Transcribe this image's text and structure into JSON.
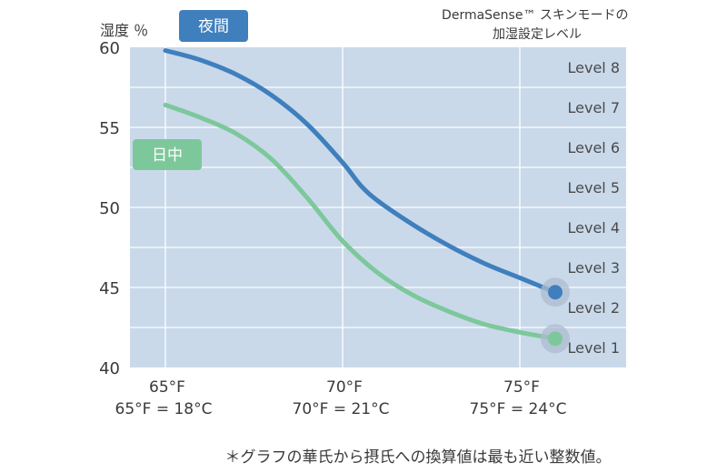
{
  "chart_data": {
    "type": "line",
    "title": "DermaSense™ スキンモードの\n加湿設定レベル",
    "ylabel": "湿度 ％",
    "ylim": [
      40,
      60
    ],
    "yticks": [
      40,
      45,
      50,
      55,
      60
    ],
    "xlim": [
      64,
      78
    ],
    "xticks": [
      {
        "value": 65,
        "label": "65°F",
        "sub": "65°F = 18°C"
      },
      {
        "value": 70,
        "label": "70°F",
        "sub": "70°F = 21°C"
      },
      {
        "value": 75,
        "label": "75°F",
        "sub": "75°F = 24°C"
      }
    ],
    "levels": [
      {
        "label": "Level 1",
        "from": 40,
        "to": 42.5
      },
      {
        "label": "Level 2",
        "from": 42.5,
        "to": 45
      },
      {
        "label": "Level 3",
        "from": 45,
        "to": 47.5
      },
      {
        "label": "Level 4",
        "from": 47.5,
        "to": 50
      },
      {
        "label": "Level 5",
        "from": 50,
        "to": 52.5
      },
      {
        "label": "Level 6",
        "from": 52.5,
        "to": 55
      },
      {
        "label": "Level 7",
        "from": 55,
        "to": 57.5
      },
      {
        "label": "Level 8",
        "from": 57.5,
        "to": 60
      }
    ],
    "series": [
      {
        "name": "夜間",
        "color": "#3f7fbd",
        "x": [
          65,
          66,
          67,
          68,
          69,
          70,
          70.5,
          71,
          72,
          73,
          74,
          75,
          76
        ],
        "values": [
          59.8,
          59.2,
          58.3,
          57.0,
          55.2,
          52.8,
          51.4,
          50.4,
          48.9,
          47.6,
          46.5,
          45.6,
          44.7
        ]
      },
      {
        "name": "日中",
        "color": "#7dc89b",
        "x": [
          65,
          66,
          67,
          68,
          69,
          70,
          71,
          72,
          73,
          74,
          75,
          76
        ],
        "values": [
          56.4,
          55.6,
          54.6,
          53.0,
          50.6,
          47.9,
          45.9,
          44.5,
          43.5,
          42.7,
          42.2,
          41.8
        ]
      }
    ],
    "footnote": "＊グラフの華氏から摂氏への換算値は最も近い整数値。"
  }
}
